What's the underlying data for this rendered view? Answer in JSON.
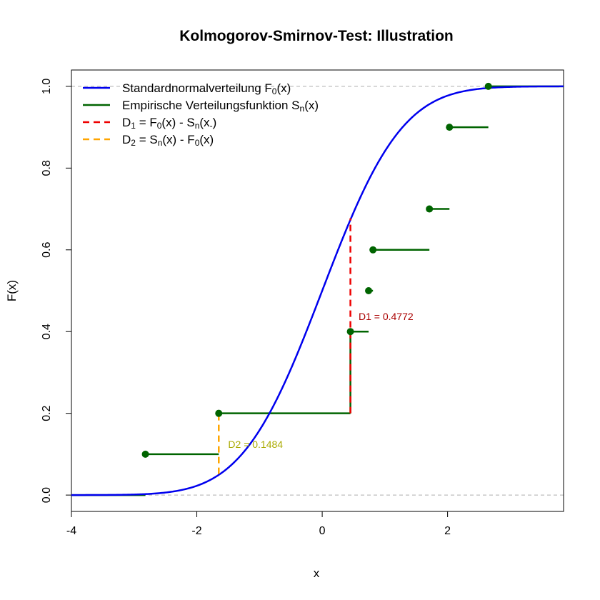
{
  "chart_data": {
    "type": "line",
    "title": "Kolmogorov-Smirnov-Test: Illustration",
    "xlabel": "x",
    "ylabel": "F(x)",
    "xlim": [
      -4.0,
      3.85
    ],
    "ylim": [
      -0.04,
      1.04
    ],
    "x_ticks": [
      -4,
      -2,
      0,
      2
    ],
    "y_ticks": [
      0.0,
      0.2,
      0.4,
      0.6,
      0.8,
      1.0
    ],
    "x_tick_labels": [
      "-4",
      "-2",
      "0",
      "2"
    ],
    "y_tick_labels": [
      "0.0",
      "0.2",
      "0.4",
      "0.6",
      "0.8",
      "1.0"
    ],
    "reference_lines_y": [
      0,
      1
    ],
    "legend_position": "top-left",
    "legend": [
      {
        "type": "normal_cdf",
        "main": "Standardnormalverteilung F",
        "sub": "0",
        "tail": "(x)",
        "color": "#0000ee",
        "dash": "solid"
      },
      {
        "type": "ecdf",
        "main": "Empirische Verteilungsfunktion S",
        "sub": "n",
        "tail": "(x)",
        "color": "#006400",
        "dash": "solid"
      },
      {
        "type": "d1",
        "main": "D",
        "sub": "1",
        "tail": " = F",
        "sub2": "0",
        "tail2": "(x) - S",
        "sub3": "n",
        "tail3": "(x",
        "sub4": "-",
        "tail4": ")",
        "color": "#ee0000",
        "dash": "dashed"
      },
      {
        "type": "d2",
        "main": "D",
        "sub": "2",
        "tail": " = S",
        "sub2": "n",
        "tail2": "(x) - F",
        "sub3": "0",
        "tail3": "(x)",
        "color": "#ffa500",
        "dash": "dashed"
      }
    ],
    "series": [
      {
        "kind": "ecdf",
        "color": "#006400",
        "sample": [
          -2.82,
          -1.65,
          0.45,
          0.74,
          0.81,
          1.71,
          2.03,
          2.65
        ],
        "values": [
          0.1,
          0.2,
          0.4,
          0.5,
          0.6,
          0.7,
          0.9,
          1.0
        ]
      }
    ],
    "annotations": [
      {
        "id": "d1",
        "label": "D1 = 0.4772",
        "x": 0.45,
        "y_from": 0.2,
        "y_to": 0.6772,
        "label_x": 0.58,
        "label_y": 0.437,
        "color": "#ee0000",
        "text_color": "#aa0000"
      },
      {
        "id": "d2",
        "label": "D2 = 0.1484",
        "x": -1.65,
        "y_from": 0.0516,
        "y_to": 0.2,
        "label_x": -1.5,
        "label_y": 0.124,
        "color": "#ffa500",
        "text_color": "#aaaa00"
      }
    ]
  }
}
